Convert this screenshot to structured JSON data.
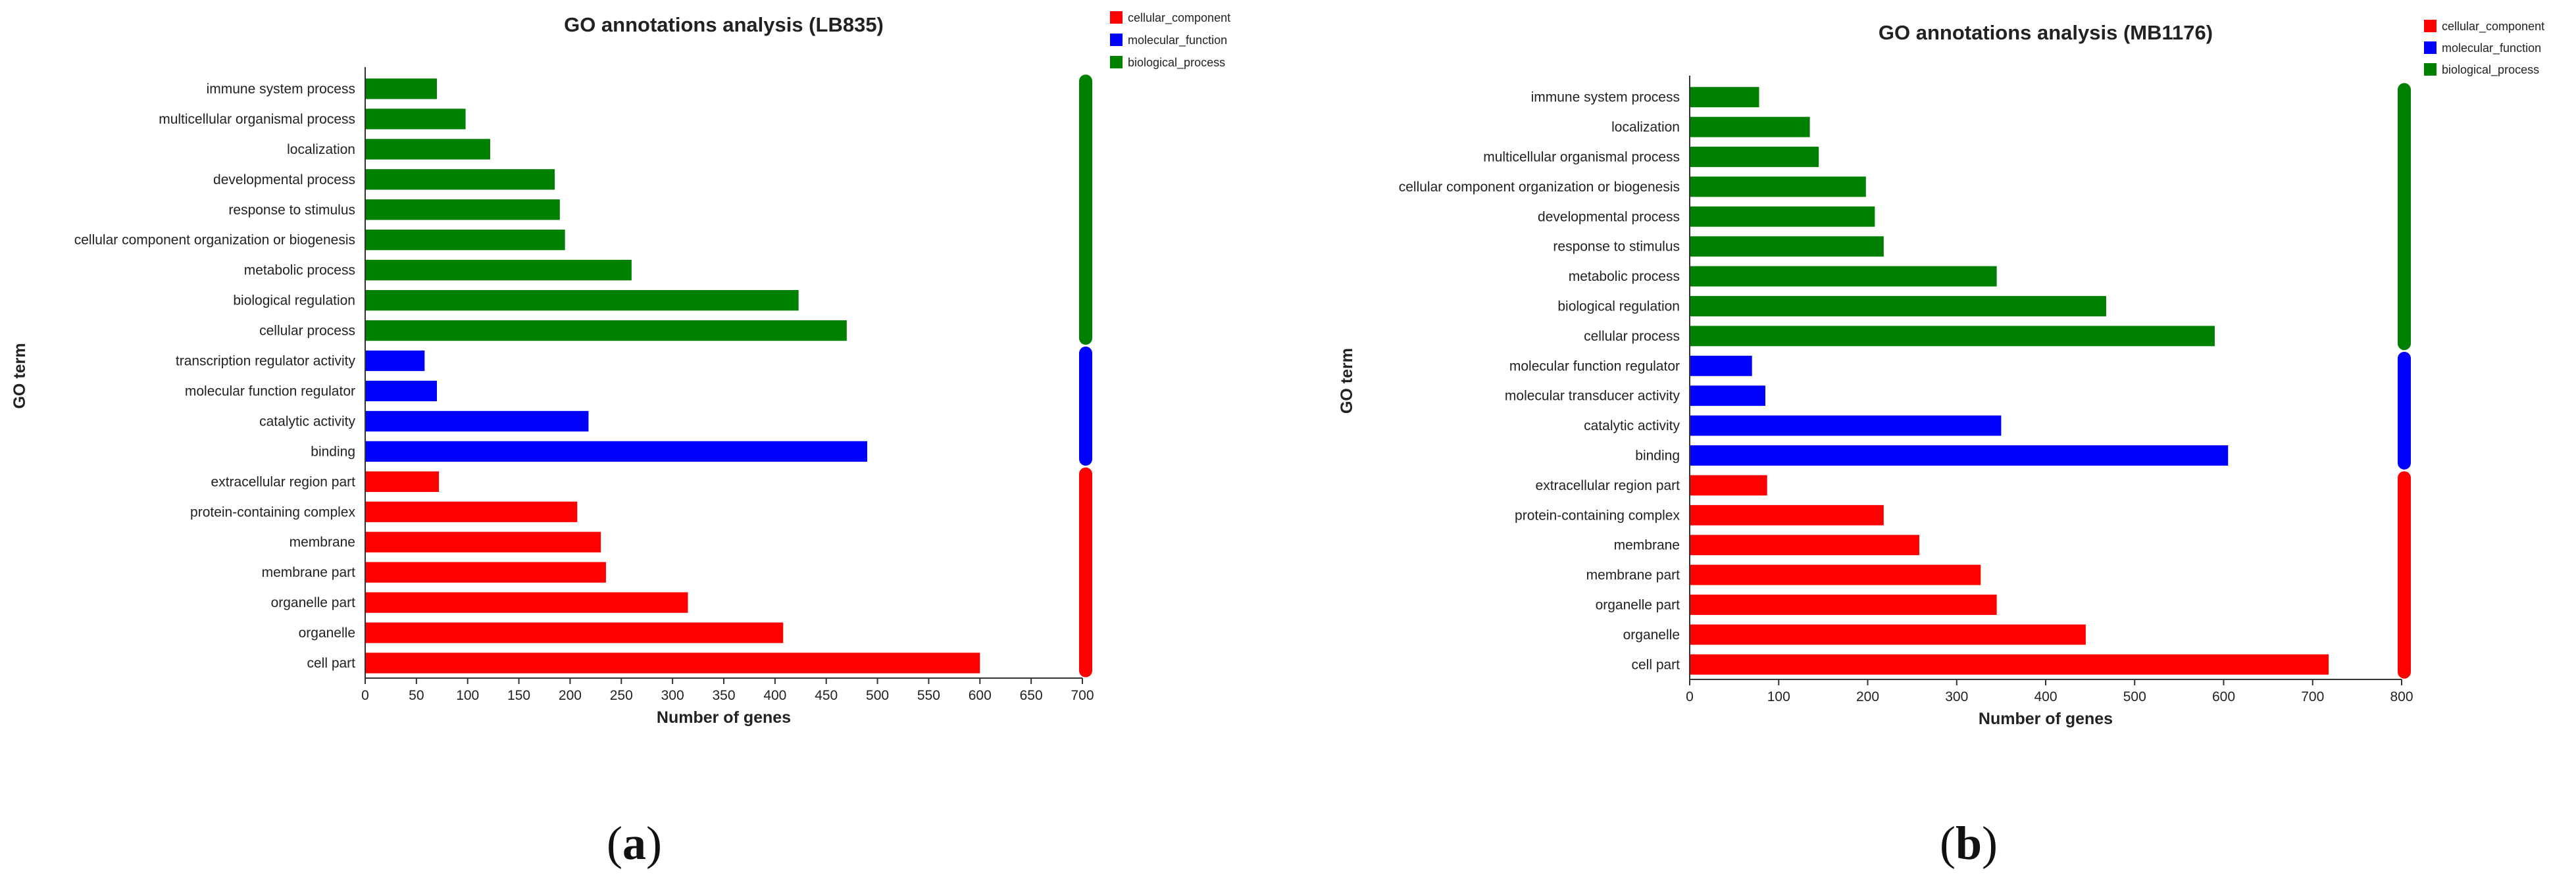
{
  "colors": {
    "cellular_component": "#ff0000",
    "molecular_function": "#0000ff",
    "biological_process": "#008000"
  },
  "chart_data": [
    {
      "type": "bar",
      "orientation": "horizontal",
      "panel_label": "a",
      "title": "GO annotations analysis (LB835)",
      "xlabel": "Number of genes",
      "ylabel": "GO term",
      "xlim": [
        0,
        700
      ],
      "xticks": [
        0,
        50,
        100,
        150,
        200,
        250,
        300,
        350,
        400,
        450,
        500,
        550,
        600,
        650,
        700
      ],
      "legend": [
        "cellular_component",
        "molecular_function",
        "biological_process"
      ],
      "legend_position": "top-right",
      "categories": [
        "immune system process",
        "multicellular organismal process",
        "localization",
        "developmental process",
        "response to stimulus",
        "cellular component organization or biogenesis",
        "metabolic process",
        "biological regulation",
        "cellular process",
        "transcription regulator activity",
        "molecular function regulator",
        "catalytic activity",
        "binding",
        "extracellular region part",
        "protein-containing complex",
        "membrane",
        "membrane part",
        "organelle part",
        "organelle",
        "cell part"
      ],
      "groups": [
        "biological_process",
        "biological_process",
        "biological_process",
        "biological_process",
        "biological_process",
        "biological_process",
        "biological_process",
        "biological_process",
        "biological_process",
        "molecular_function",
        "molecular_function",
        "molecular_function",
        "molecular_function",
        "cellular_component",
        "cellular_component",
        "cellular_component",
        "cellular_component",
        "cellular_component",
        "cellular_component",
        "cellular_component"
      ],
      "values": [
        70,
        98,
        122,
        185,
        190,
        195,
        260,
        423,
        470,
        58,
        70,
        218,
        490,
        72,
        207,
        230,
        235,
        315,
        408,
        600
      ]
    },
    {
      "type": "bar",
      "orientation": "horizontal",
      "panel_label": "b",
      "title": "GO annotations analysis (MB1176)",
      "xlabel": "Number of genes",
      "ylabel": "GO term",
      "xlim": [
        0,
        800
      ],
      "xticks": [
        0,
        100,
        200,
        300,
        400,
        500,
        600,
        700,
        800
      ],
      "legend": [
        "cellular_component",
        "molecular_function",
        "biological_process"
      ],
      "legend_position": "top-right",
      "categories": [
        "immune system process",
        "localization",
        "multicellular organismal process",
        "cellular component organization or biogenesis",
        "developmental process",
        "response to stimulus",
        "metabolic process",
        "biological regulation",
        "cellular process",
        "molecular function regulator",
        "molecular transducer activity",
        "catalytic activity",
        "binding",
        "extracellular region part",
        "protein-containing complex",
        "membrane",
        "membrane part",
        "organelle part",
        "organelle",
        "cell part"
      ],
      "groups": [
        "biological_process",
        "biological_process",
        "biological_process",
        "biological_process",
        "biological_process",
        "biological_process",
        "biological_process",
        "biological_process",
        "biological_process",
        "molecular_function",
        "molecular_function",
        "molecular_function",
        "molecular_function",
        "cellular_component",
        "cellular_component",
        "cellular_component",
        "cellular_component",
        "cellular_component",
        "cellular_component",
        "cellular_component"
      ],
      "values": [
        78,
        135,
        145,
        198,
        208,
        218,
        345,
        468,
        590,
        70,
        85,
        350,
        605,
        87,
        218,
        258,
        327,
        345,
        445,
        718
      ]
    }
  ]
}
